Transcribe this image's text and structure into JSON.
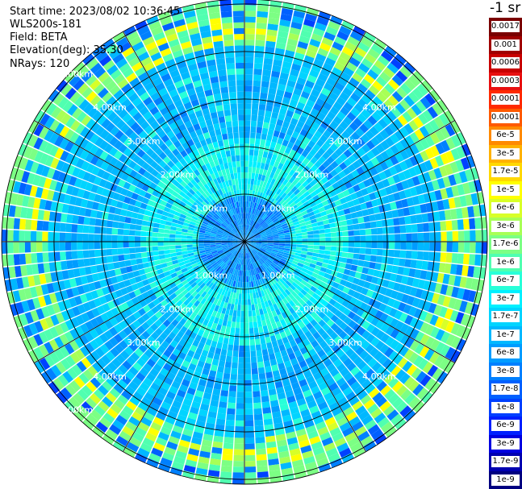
{
  "info": {
    "start_time": "Start time: 2023/08/02 10:36:45",
    "instrument": "WLS200s-181",
    "field": "Field: BETA",
    "elevation": "Elevation(deg): 35.30",
    "nrays": "NRays: 120"
  },
  "colorbar": {
    "title": "-1 sr",
    "levels": [
      {
        "label": "0.0017",
        "color": "#7a0000"
      },
      {
        "label": "0.001",
        "color": "#a00000"
      },
      {
        "label": "0.0006",
        "color": "#c80000"
      },
      {
        "label": "0.0003",
        "color": "#e81010"
      },
      {
        "label": "0.00017",
        "color": "#ff2a00"
      },
      {
        "label": "0.0001",
        "color": "#ff5a00"
      },
      {
        "label": "6e-5",
        "color": "#ff8a00"
      },
      {
        "label": "3e-5",
        "color": "#ffb200"
      },
      {
        "label": "1.7e-5",
        "color": "#ffd800"
      },
      {
        "label": "1e-5",
        "color": "#ffff00"
      },
      {
        "label": "6e-6",
        "color": "#d8ff28"
      },
      {
        "label": "3e-6",
        "color": "#a8ff56"
      },
      {
        "label": "1.7e-6",
        "color": "#7cff84"
      },
      {
        "label": "1e-6",
        "color": "#50ffb0"
      },
      {
        "label": "6e-7",
        "color": "#28ffd8"
      },
      {
        "label": "3e-7",
        "color": "#00f0ff"
      },
      {
        "label": "1.7e-7",
        "color": "#00d4ff"
      },
      {
        "label": "1e-7",
        "color": "#00b8ff"
      },
      {
        "label": "6e-8",
        "color": "#009cff"
      },
      {
        "label": "3e-8",
        "color": "#0080ff"
      },
      {
        "label": "1.7e-8",
        "color": "#0060ff"
      },
      {
        "label": "1e-8",
        "color": "#0040ff"
      },
      {
        "label": "6e-9",
        "color": "#0020ff"
      },
      {
        "label": "3e-9",
        "color": "#0000e0"
      },
      {
        "label": "1.7e-9",
        "color": "#0000b0"
      },
      {
        "label": "1e-9",
        "color": "#000080"
      }
    ]
  },
  "range_rings": [
    {
      "label": "1.00km",
      "km": 1
    },
    {
      "label": "2.00km",
      "km": 2
    },
    {
      "label": "3.00km",
      "km": 3
    },
    {
      "label": "4.00km",
      "km": 4
    },
    {
      "label": "5.00km",
      "km": 5
    }
  ],
  "ppi": {
    "n_rays": 120,
    "max_range_km": 5.1,
    "spoke_angles_deg": [
      0,
      30,
      60,
      90,
      120,
      150,
      180,
      210,
      240,
      270,
      300,
      330
    ]
  }
}
